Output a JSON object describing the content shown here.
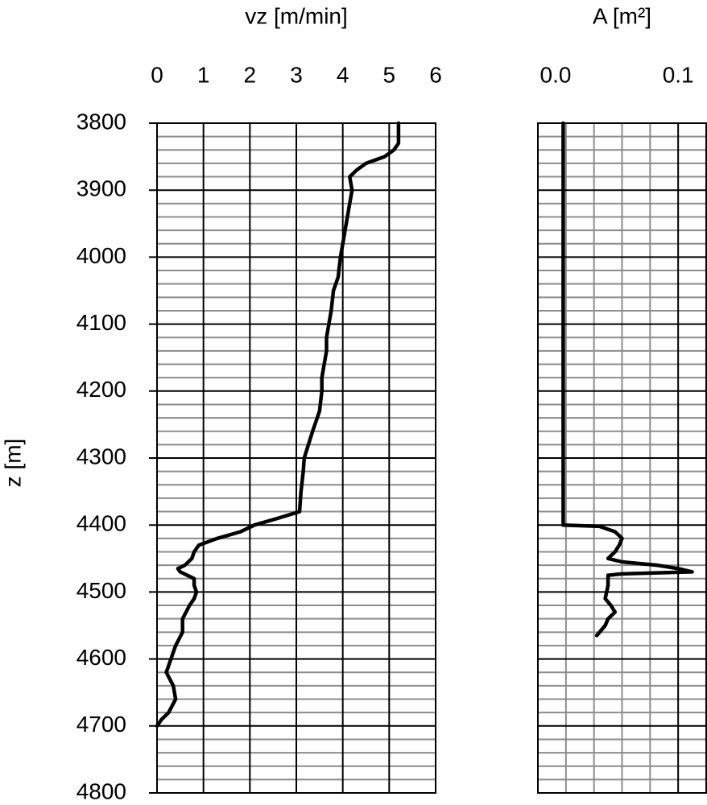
{
  "chart_data": [
    {
      "type": "line",
      "xlabel": "vz [m/min]",
      "ylabel": "z [m]",
      "color": "#000000",
      "xlim": [
        0,
        6
      ],
      "xticks": [
        0,
        1,
        2,
        3,
        4,
        5,
        6
      ],
      "ylim": [
        3800,
        4800
      ],
      "yticks": [
        3800,
        3900,
        4000,
        4100,
        4200,
        4300,
        4400,
        4500,
        4600,
        4700,
        4800
      ],
      "y_inverted": true,
      "show_ytick_labels": true,
      "grid": true,
      "x": [
        5.2,
        5.2,
        5.2,
        5.1,
        4.9,
        4.5,
        4.3,
        4.15,
        4.2,
        4.15,
        4.1,
        4.05,
        4.0,
        3.95,
        3.9,
        3.8,
        3.75,
        3.7,
        3.65,
        3.65,
        3.6,
        3.55,
        3.55,
        3.5,
        3.35,
        3.17,
        3.15,
        3.1,
        3.07,
        2.6,
        2.1,
        1.8,
        1.3,
        0.9,
        0.8,
        0.75,
        0.6,
        0.45,
        0.5,
        0.8,
        0.8,
        0.85,
        0.8,
        0.7,
        0.55,
        0.55,
        0.4,
        0.3,
        0.2,
        0.35,
        0.4,
        0.25,
        0.1,
        0.0
      ],
      "y": [
        3800,
        3810,
        3830,
        3840,
        3850,
        3860,
        3870,
        3880,
        3900,
        3920,
        3940,
        3960,
        3980,
        4000,
        4030,
        4050,
        4080,
        4100,
        4120,
        4140,
        4160,
        4180,
        4200,
        4230,
        4260,
        4300,
        4320,
        4350,
        4380,
        4390,
        4400,
        4410,
        4420,
        4430,
        4440,
        4450,
        4460,
        4465,
        4470,
        4480,
        4490,
        4500,
        4510,
        4520,
        4540,
        4560,
        4580,
        4600,
        4620,
        4640,
        4660,
        4680,
        4690,
        4700
      ]
    },
    {
      "type": "line",
      "xlabel": "A [m²]",
      "color": "#000000",
      "xlim": [
        0,
        0.12
      ],
      "xticks": [
        {
          "value": 0,
          "label": "0.0"
        },
        0.1
      ],
      "ylim": [
        3800,
        4800
      ],
      "yticks": [
        3800,
        3900,
        4000,
        4100,
        4200,
        4300,
        4400,
        4500,
        4600,
        4700,
        4800
      ],
      "y_inverted": true,
      "show_ytick_labels": false,
      "grid": true,
      "x": [
        0.018,
        0.018,
        0.044,
        0.055,
        0.06,
        0.058,
        0.055,
        0.05,
        0.06,
        0.085,
        0.1,
        0.11,
        0.06,
        0.05,
        0.05,
        0.048,
        0.052,
        0.055,
        0.05,
        0.048,
        0.042
      ],
      "y": [
        3800,
        4400,
        4402,
        4410,
        4420,
        4430,
        4440,
        4450,
        4455,
        4460,
        4465,
        4470,
        4473,
        4475,
        4490,
        4510,
        4520,
        4530,
        4540,
        4550,
        4565
      ]
    }
  ]
}
